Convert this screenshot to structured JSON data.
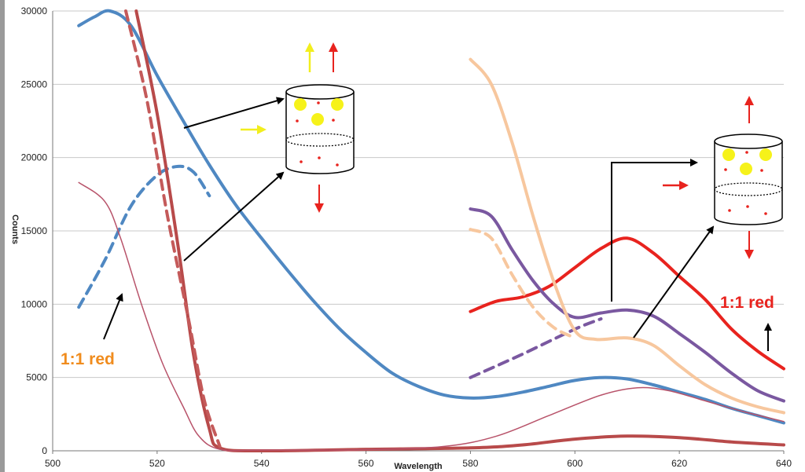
{
  "chart_data": {
    "type": "line",
    "xlabel": "Wavelength",
    "ylabel": "Counts",
    "xlim": [
      500,
      640
    ],
    "ylim": [
      0,
      30000
    ],
    "x_ticks": [
      500,
      520,
      540,
      560,
      580,
      600,
      620,
      640
    ],
    "y_ticks": [
      0,
      5000,
      10000,
      15000,
      20000,
      25000,
      30000
    ],
    "grid": "horizontal",
    "legend": "none",
    "series": [
      {
        "color": "#4F88C2",
        "style": "solid",
        "width": 4,
        "points": [
          [
            505,
            29000
          ],
          [
            508,
            29600
          ],
          [
            511,
            30200
          ],
          [
            515,
            29000
          ],
          [
            520,
            25600
          ],
          [
            525,
            22500
          ],
          [
            530,
            19500
          ],
          [
            535,
            16800
          ],
          [
            540,
            14500
          ],
          [
            545,
            12300
          ],
          [
            550,
            10200
          ],
          [
            555,
            8300
          ],
          [
            560,
            6700
          ],
          [
            565,
            5300
          ],
          [
            570,
            4400
          ],
          [
            575,
            3800
          ],
          [
            580,
            3600
          ],
          [
            585,
            3700
          ],
          [
            590,
            4000
          ],
          [
            595,
            4400
          ],
          [
            600,
            4800
          ],
          [
            605,
            5000
          ],
          [
            610,
            4900
          ],
          [
            615,
            4500
          ],
          [
            620,
            4000
          ],
          [
            625,
            3500
          ],
          [
            630,
            2900
          ],
          [
            635,
            2400
          ],
          [
            640,
            1900
          ]
        ]
      },
      {
        "color": "#4F88C2",
        "style": "dashed",
        "width": 4,
        "points": [
          [
            505,
            9800
          ],
          [
            510,
            13000
          ],
          [
            515,
            16700
          ],
          [
            520,
            18800
          ],
          [
            524,
            19400
          ],
          [
            527,
            19000
          ],
          [
            530,
            17400
          ]
        ]
      },
      {
        "color": "#B84A4A",
        "style": "solid",
        "width": 4,
        "points": [
          [
            516,
            30000
          ],
          [
            520,
            23000
          ],
          [
            524,
            14000
          ],
          [
            527,
            6500
          ],
          [
            530,
            1500
          ],
          [
            532,
            200
          ],
          [
            540,
            0
          ],
          [
            560,
            100
          ],
          [
            580,
            200
          ],
          [
            590,
            400
          ],
          [
            600,
            800
          ],
          [
            610,
            1000
          ],
          [
            620,
            900
          ],
          [
            630,
            600
          ],
          [
            640,
            400
          ]
        ]
      },
      {
        "color": "#C45A5A",
        "style": "dashed",
        "width": 4,
        "points": [
          [
            514,
            30000
          ],
          [
            518,
            24000
          ],
          [
            522,
            16000
          ],
          [
            526,
            9000
          ],
          [
            529,
            3500
          ],
          [
            532,
            300
          ]
        ]
      },
      {
        "color": "#B8536A",
        "style": "thin",
        "width": 1.5,
        "points": [
          [
            505,
            18300
          ],
          [
            510,
            17000
          ],
          [
            513,
            14500
          ],
          [
            517,
            10000
          ],
          [
            521,
            6000
          ],
          [
            525,
            3000
          ],
          [
            528,
            1000
          ],
          [
            532,
            100
          ],
          [
            540,
            50
          ],
          [
            560,
            80
          ],
          [
            575,
            300
          ],
          [
            585,
            1000
          ],
          [
            595,
            2400
          ],
          [
            605,
            3800
          ],
          [
            612,
            4300
          ],
          [
            618,
            4100
          ],
          [
            625,
            3400
          ],
          [
            632,
            2700
          ],
          [
            640,
            2000
          ]
        ]
      },
      {
        "color": "#E8231E",
        "style": "solid",
        "width": 4,
        "points": [
          [
            580,
            9500
          ],
          [
            585,
            10200
          ],
          [
            590,
            10500
          ],
          [
            595,
            11200
          ],
          [
            600,
            12500
          ],
          [
            605,
            13800
          ],
          [
            610,
            14500
          ],
          [
            615,
            13500
          ],
          [
            620,
            11900
          ],
          [
            625,
            10300
          ],
          [
            630,
            8300
          ],
          [
            635,
            6800
          ],
          [
            640,
            5600
          ]
        ]
      },
      {
        "color": "#7A58A0",
        "style": "solid",
        "width": 4,
        "points": [
          [
            580,
            16500
          ],
          [
            584,
            16000
          ],
          [
            588,
            13700
          ],
          [
            592,
            11600
          ],
          [
            596,
            10000
          ],
          [
            600,
            9100
          ],
          [
            605,
            9400
          ],
          [
            610,
            9600
          ],
          [
            615,
            9200
          ],
          [
            620,
            8000
          ],
          [
            625,
            6700
          ],
          [
            630,
            5300
          ],
          [
            635,
            4100
          ],
          [
            640,
            3400
          ]
        ]
      },
      {
        "color": "#7A58A0",
        "style": "dashed",
        "width": 4,
        "points": [
          [
            580,
            5000
          ],
          [
            590,
            6600
          ],
          [
            600,
            8300
          ],
          [
            605,
            9000
          ]
        ]
      },
      {
        "color": "#F7C79E",
        "style": "solid",
        "width": 4,
        "points": [
          [
            580,
            26700
          ],
          [
            584,
            25000
          ],
          [
            588,
            21000
          ],
          [
            592,
            16000
          ],
          [
            596,
            11500
          ],
          [
            600,
            8200
          ],
          [
            604,
            7600
          ],
          [
            610,
            7700
          ],
          [
            615,
            7200
          ],
          [
            620,
            5800
          ],
          [
            625,
            4500
          ],
          [
            630,
            3600
          ],
          [
            635,
            3000
          ],
          [
            640,
            2600
          ]
        ]
      },
      {
        "color": "#F7C79E",
        "style": "dashed",
        "width": 4,
        "points": [
          [
            580,
            15100
          ],
          [
            584,
            14500
          ],
          [
            588,
            12000
          ],
          [
            592,
            9800
          ],
          [
            596,
            8400
          ],
          [
            600,
            7700
          ]
        ]
      }
    ],
    "annotations": {
      "left_label": "1:1 red",
      "right_label": "1:1 red"
    },
    "colors": {
      "left_label": "#F08C1E",
      "right_label": "#E8231E",
      "arrow_yellow": "#F2EE1E",
      "arrow_red": "#E8231E",
      "yellow_dot": "#F6F21A",
      "red_dot": "#E8231E"
    }
  }
}
